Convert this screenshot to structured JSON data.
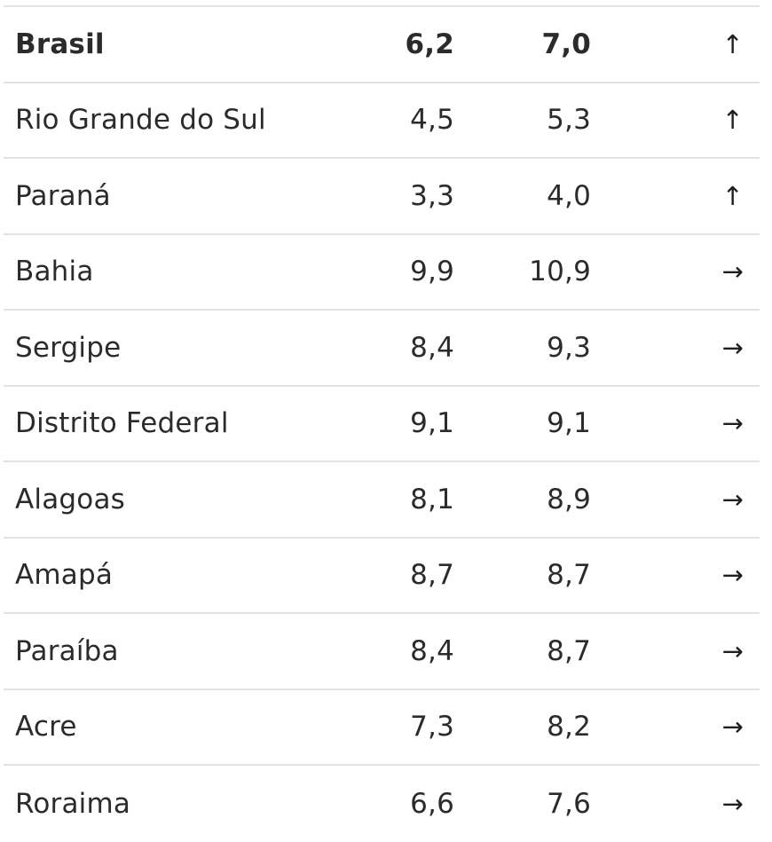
{
  "rows": [
    {
      "name": "Brasil",
      "v1": "6,2",
      "v2": "7,0",
      "trend": "↑",
      "bold": true
    },
    {
      "name": "Rio Grande do Sul",
      "v1": "4,5",
      "v2": "5,3",
      "trend": "↑"
    },
    {
      "name": "Paraná",
      "v1": "3,3",
      "v2": "4,0",
      "trend": "↑"
    },
    {
      "name": "Bahia",
      "v1": "9,9",
      "v2": "10,9",
      "trend": "→"
    },
    {
      "name": "Sergipe",
      "v1": "8,4",
      "v2": "9,3",
      "trend": "→"
    },
    {
      "name": "Distrito Federal",
      "v1": "9,1",
      "v2": "9,1",
      "trend": "→"
    },
    {
      "name": "Alagoas",
      "v1": "8,1",
      "v2": "8,9",
      "trend": "→"
    },
    {
      "name": "Amapá",
      "v1": "8,7",
      "v2": "8,7",
      "trend": "→"
    },
    {
      "name": "Paraíba",
      "v1": "8,4",
      "v2": "8,7",
      "trend": "→"
    },
    {
      "name": "Acre",
      "v1": "7,3",
      "v2": "8,2",
      "trend": "→"
    },
    {
      "name": "Roraima",
      "v1": "6,6",
      "v2": "7,6",
      "trend": "→"
    }
  ]
}
